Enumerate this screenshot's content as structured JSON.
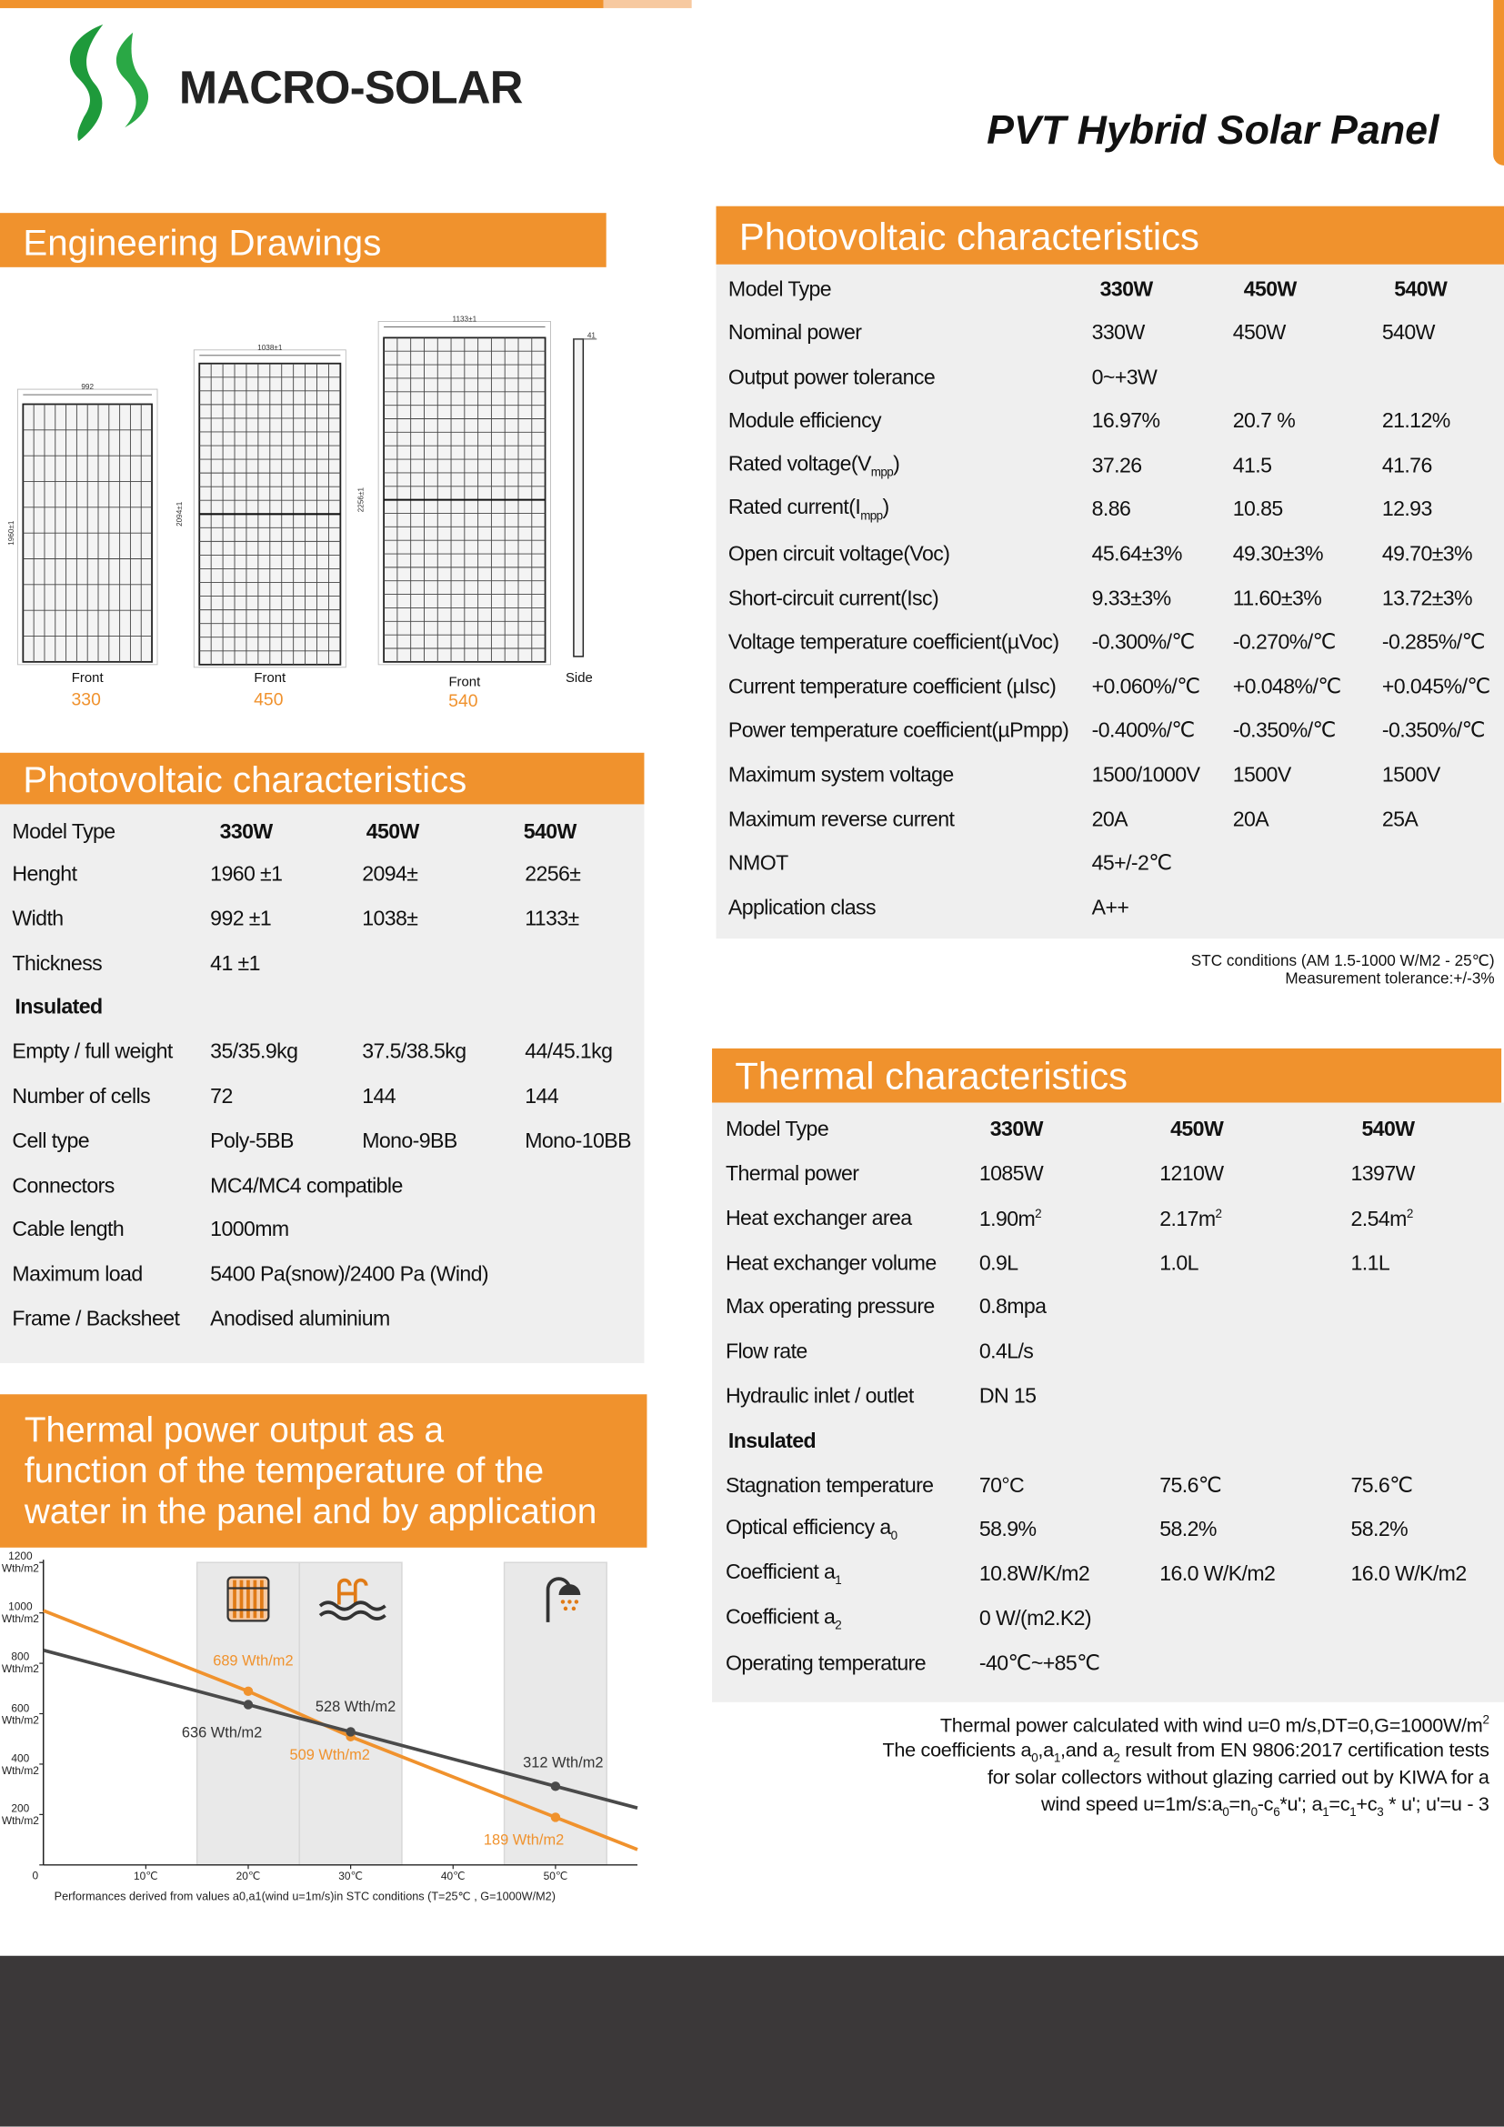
{
  "header": {
    "brand": "MACRO-SOLAR",
    "title": "PVT Hybrid Solar Panel"
  },
  "drawings": {
    "title": "Engineering Drawings",
    "panels": [
      {
        "view": "Front",
        "model": "330",
        "width": "992",
        "height": "1960±1"
      },
      {
        "view": "Front",
        "model": "450",
        "width": "1038±1",
        "height": "2094±1"
      },
      {
        "view": "Front",
        "model": "540",
        "width": "1133±1",
        "height": "2256±1"
      }
    ],
    "side": {
      "view": "Side",
      "depth": "41"
    }
  },
  "pv_specs_left": {
    "title": "Photovoltaic characteristics",
    "header": [
      "Model Type",
      "330W",
      "450W",
      "540W"
    ],
    "rows": [
      [
        "Henght",
        "1960 ±1",
        "2094±",
        "2256±"
      ],
      [
        "Width",
        "992 ±1",
        "1038±",
        "1133±"
      ],
      [
        "Thickness",
        "41 ±1"
      ],
      [
        "Insulated"
      ],
      [
        "Empty / full weight",
        "35/35.9kg",
        "37.5/38.5kg",
        "44/45.1kg"
      ],
      [
        "Number of cells",
        "72",
        "144",
        "144"
      ],
      [
        "Cell type",
        "Poly-5BB",
        "Mono-9BB",
        "Mono-10BB"
      ],
      [
        "Connectors",
        "MC4/MC4 compatible"
      ],
      [
        "Cable length",
        "1000mm"
      ],
      [
        "Maximum load",
        "5400 Pa(snow)/2400 Pa (Wind)"
      ],
      [
        "Frame / Backsheet",
        "Anodised aluminium"
      ]
    ]
  },
  "pv_specs_right": {
    "title": "Photovoltaic characteristics",
    "header": [
      "Model Type",
      "330W",
      "450W",
      "540W"
    ],
    "rows": [
      [
        "Nominal power",
        "330W",
        "450W",
        "540W"
      ],
      [
        "Output power tolerance",
        "0~+3W"
      ],
      [
        "Module efficiency",
        "16.97%",
        "20.7 %",
        "21.12%"
      ],
      [
        [
          "Rated voltage(V",
          {
            "sub": "mpp"
          },
          ")"
        ],
        "37.26",
        "41.5",
        "41.76"
      ],
      [
        [
          "Rated current(I",
          {
            "sub": "mpp"
          },
          ")"
        ],
        "8.86",
        "10.85",
        "12.93"
      ],
      [
        "Open circuit voltage(Voc)",
        "45.64±3%",
        "49.30±3%",
        "49.70±3%"
      ],
      [
        "Short-circuit current(Isc)",
        "9.33±3%",
        "11.60±3%",
        "13.72±3%"
      ],
      [
        "Voltage temperature coefficient(µVoc)",
        "-0.300%/℃",
        "-0.270%/℃",
        "-0.285%/℃"
      ],
      [
        "Current temperature coefficient (µIsc)",
        "+0.060%/℃",
        "+0.048%/℃",
        "+0.045%/℃"
      ],
      [
        "Power temperature coefficient(µPmpp)",
        "-0.400%/℃",
        "-0.350%/℃",
        "-0.350%/℃"
      ],
      [
        "Maximum system voltage",
        "1500/1000V",
        "1500V",
        "1500V"
      ],
      [
        "Maximum reverse current",
        "20A",
        "20A",
        "25A"
      ],
      [
        "NMOT",
        "45+/-2℃"
      ],
      [
        "Application class",
        "A++"
      ]
    ],
    "notes": [
      "STC conditions (AM 1.5-1000 W/M2 - 25℃)",
      "Measurement tolerance:+/-3%"
    ]
  },
  "thermal_specs": {
    "title": "Thermal characteristics",
    "header": [
      "Model Type",
      "330W",
      "450W",
      "540W"
    ],
    "rows": [
      [
        "Thermal power",
        "1085W",
        "1210W",
        "1397W"
      ],
      [
        "Heat exchanger area",
        [
          "1.90m",
          {
            "sup": "2"
          }
        ],
        [
          "2.17m",
          {
            "sup": "2"
          }
        ],
        [
          "2.54m",
          {
            "sup": "2"
          }
        ]
      ],
      [
        "Heat exchanger volume",
        "0.9L",
        "1.0L",
        "1.1L"
      ],
      [
        "Max operating pressure",
        "0.8mpa"
      ],
      [
        "Flow rate",
        "0.4L/s"
      ],
      [
        "Hydraulic inlet / outlet",
        "DN 15"
      ],
      [
        "Insulated"
      ],
      [
        "Stagnation temperature",
        "70°C",
        "75.6℃",
        "75.6℃"
      ],
      [
        [
          "Optical efficiency a",
          {
            "sub": "0"
          }
        ],
        "58.9%",
        "58.2%",
        "58.2%"
      ],
      [
        [
          "Coefficient a",
          {
            "sub": "1"
          }
        ],
        "10.8W/K/m2",
        "16.0 W/K/m2",
        "16.0 W/K/m2"
      ],
      [
        [
          "Coefficient a",
          {
            "sub": "2"
          }
        ],
        "0 W/(m2.K2)"
      ],
      [
        "Operating temperature",
        "-40℃~+85℃"
      ]
    ],
    "notes": [
      [
        "Thermal power calculated with wind u=0 m/s,DT=0,G=1000W/m",
        {
          "sup": "2"
        }
      ],
      [
        "The coefficients a",
        {
          "sub": "0"
        },
        ",a",
        {
          "sub": "1"
        },
        ",and a",
        {
          "sub": "2"
        },
        " result from EN 9806:2017 certification tests"
      ],
      "for solar collectors without glazing carried out by KIWA for a",
      [
        "wind speed u=1m/s:a",
        {
          "sub": "0"
        },
        "=n",
        {
          "sub": "0"
        },
        "-c",
        {
          "sub": "6"
        },
        "*u'; a",
        {
          "sub": "1"
        },
        "=c",
        {
          "sub": "1"
        },
        "+c",
        {
          "sub": "3"
        },
        " * u'; u'=u - 3"
      ]
    ]
  },
  "thermal_chart": {
    "type": "line",
    "title": [
      "Thermal power output as a",
      "function of the temperature of the",
      "water in the panel and by application"
    ],
    "xlim": [
      0,
      58
    ],
    "ylim": [
      0,
      1200
    ],
    "xticks": [
      {
        "value": 10,
        "label": "10℃"
      },
      {
        "value": 20,
        "label": "20℃"
      },
      {
        "value": 30,
        "label": "30℃"
      },
      {
        "value": 40,
        "label": "40℃"
      },
      {
        "value": 50,
        "label": "50℃"
      }
    ],
    "yticks": [
      0,
      {
        "value": 200,
        "label": "200 Wth/m2"
      },
      {
        "value": 400,
        "label": "400 Wth/m2"
      },
      {
        "value": 600,
        "label": "600 Wth/m2"
      },
      {
        "value": 800,
        "label": "800 Wth/m2"
      },
      {
        "value": 1000,
        "label": "1000 Wth/m2"
      },
      {
        "value": 1200,
        "label": "1200 Wth/m2"
      }
    ],
    "bands": [
      [
        15,
        25
      ],
      [
        25,
        35
      ],
      [
        45,
        55
      ]
    ],
    "series": [
      {
        "color": "#f0922d",
        "x": [
          0,
          20,
          30,
          50,
          58
        ],
        "values": [
          1009,
          689,
          509,
          189,
          61
        ],
        "value_labels": [
          null,
          "689 Wth/m2",
          "509 Wth/m2",
          "189 Wth/m2",
          null
        ]
      },
      {
        "color": "#4a4a4a",
        "x": [
          0,
          20,
          30,
          50,
          58
        ],
        "values": [
          852,
          636,
          528,
          312,
          226
        ],
        "value_labels": [
          null,
          "636 Wth/m2",
          "528 Wth/m2",
          "312 Wth/m2",
          null
        ]
      }
    ],
    "note": "Performances derived from values a0,a1(wind u=1m/s)in STC conditions (T=25℃ , G=1000W/M2)"
  }
}
